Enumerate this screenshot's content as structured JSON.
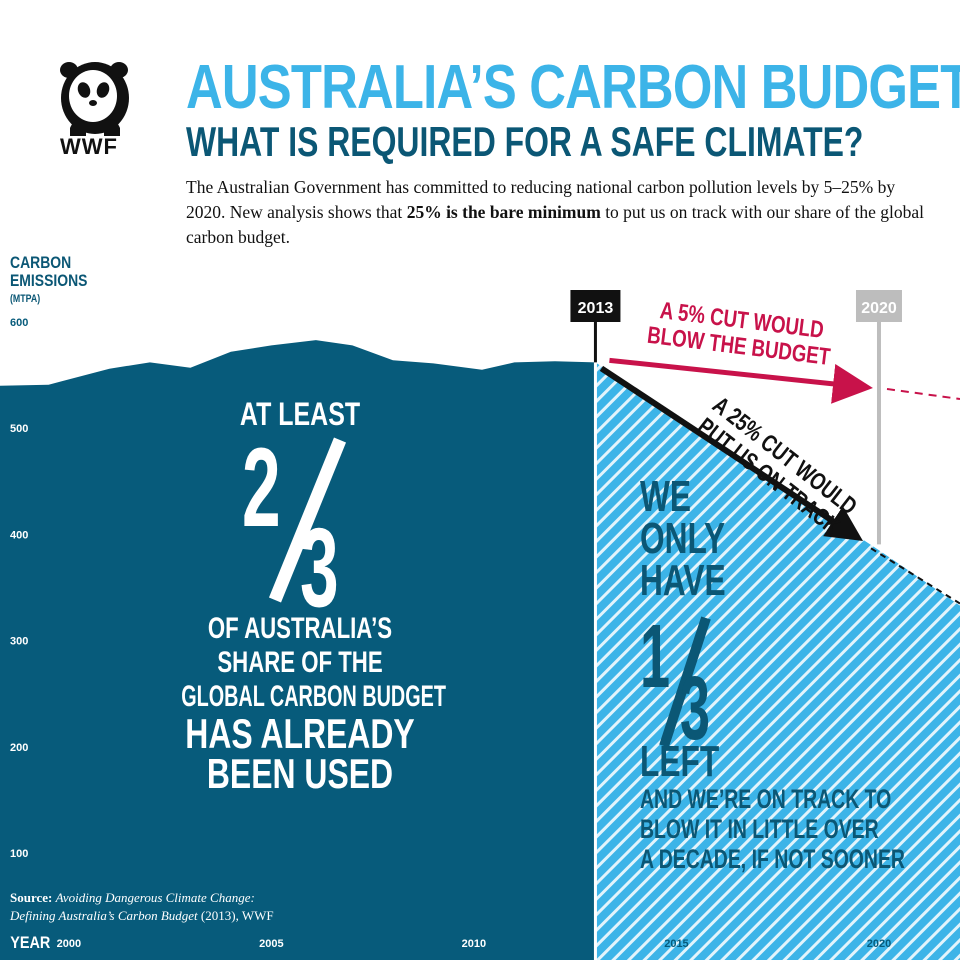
{
  "brand": {
    "logo_text": "WWF"
  },
  "header": {
    "title": "AUSTRALIA’S CARBON BUDGET",
    "subtitle": "WHAT IS REQUIRED FOR A SAFE CLIMATE?",
    "intro_part1": "The Australian Government has committed to reducing national carbon pollution levels by 5–25% by 2020. New analysis shows that ",
    "intro_bold": "25% is the bare minimum",
    "intro_part2": " to put us on track with our share of the global carbon budget."
  },
  "left_panel": {
    "line1": "AT LEAST",
    "fraction_num": "2",
    "fraction_den": "3",
    "line2": "OF AUSTRALIA’S",
    "line3": "SHARE OF THE",
    "line4": "GLOBAL CARBON BUDGET",
    "line5": "HAS ALREADY",
    "line6": "BEEN USED"
  },
  "right_panel": {
    "line1": "WE",
    "line2": "ONLY",
    "line3": "HAVE",
    "fraction_num": "1",
    "fraction_den": "3",
    "line4": "LEFT",
    "line5": "AND WE’RE ON TRACK TO",
    "line6": "BLOW IT IN LITTLE OVER",
    "line7": "A DECADE, IF NOT SOONER"
  },
  "source": {
    "label": "Source:",
    "title_line1": "Avoiding Dangerous Climate Change:",
    "title_line2": "Defining Australia’s Carbon Budget",
    "suffix": " (2013), WWF"
  },
  "colors": {
    "dark_teal": "#075b7b",
    "light_blue": "#3cb4e8",
    "stripe_white": "#ffffff",
    "crimson": "#c8124a",
    "grey_marker": "#bdbdbd",
    "black": "#111111"
  },
  "chart_data": {
    "type": "area",
    "ylabel": "CARBON EMISSIONS",
    "yunits": "(MTPA)",
    "xlabel": "YEAR",
    "y_ticks": [
      600,
      500,
      400,
      300,
      200,
      100
    ],
    "x_ticks": [
      2000,
      2005,
      2010,
      2015,
      2020
    ],
    "ylim": [
      50,
      600
    ],
    "xlim": [
      1998.3,
      2022
    ],
    "series": [
      {
        "values": [
          {
            "x": 1998.3,
            "y": 540
          },
          {
            "x": 1999.5,
            "y": 541
          },
          {
            "x": 2001,
            "y": 556
          },
          {
            "x": 2002,
            "y": 562
          },
          {
            "x": 2003,
            "y": 557
          },
          {
            "x": 2004,
            "y": 572
          },
          {
            "x": 2005,
            "y": 578
          },
          {
            "x": 2006.1,
            "y": 583
          },
          {
            "x": 2007,
            "y": 578
          },
          {
            "x": 2008,
            "y": 564
          },
          {
            "x": 2009,
            "y": 561
          },
          {
            "x": 2010.2,
            "y": 555
          },
          {
            "x": 2011,
            "y": 562
          },
          {
            "x": 2012,
            "y": 563
          },
          {
            "x": 2013,
            "y": 562
          }
        ]
      }
    ],
    "budget": [
      {
        "x": 2013,
        "y": 562
      },
      {
        "x": 2020,
        "y": 385
      },
      {
        "x": 2022,
        "y": 333
      }
    ],
    "markers": [
      {
        "label": "2013",
        "x": 2013
      },
      {
        "label": "2020",
        "x": 2020
      }
    ],
    "annotations": {
      "cut5": "A 5% CUT WOULD BLOW THE BUDGET",
      "cut5_line1": "A 5% CUT WOULD",
      "cut5_line2": "BLOW THE BUDGET",
      "cut25_line1": "A 25% CUT WOULD",
      "cut25_line2": "PUT US ON TRACK"
    }
  }
}
